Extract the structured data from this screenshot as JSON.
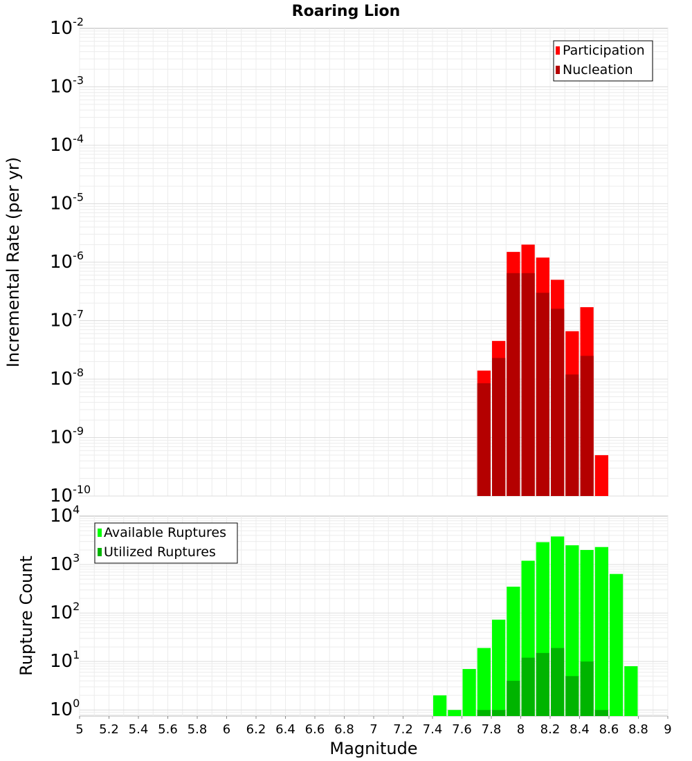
{
  "chart_data": [
    {
      "type": "bar",
      "title": "Roaring Lion",
      "ylabel": "Incremental Rate (per yr)",
      "xlabel": "",
      "yscale": "log",
      "ylim": [
        1e-10,
        0.01
      ],
      "y_ticks": [
        {
          "base": "10",
          "exp": "-2"
        },
        {
          "base": "10",
          "exp": "-3"
        },
        {
          "base": "10",
          "exp": "-4"
        },
        {
          "base": "10",
          "exp": "-5"
        },
        {
          "base": "10",
          "exp": "-6"
        },
        {
          "base": "10",
          "exp": "-7"
        },
        {
          "base": "10",
          "exp": "-8"
        },
        {
          "base": "10",
          "exp": "-9"
        },
        {
          "base": "10",
          "exp": "-10"
        }
      ],
      "xlim": [
        5,
        9
      ],
      "bin_width": 0.1,
      "legend": [
        {
          "label": "Participation",
          "color": "#ff0000"
        },
        {
          "label": "Nucleation",
          "color": "#b40000"
        }
      ],
      "legend_position": "top-right",
      "series": [
        {
          "name": "Participation",
          "color": "#ff0000",
          "x": [
            7.75,
            7.85,
            7.95,
            8.05,
            8.15,
            8.25,
            8.35,
            8.45,
            8.55
          ],
          "values": [
            1.4e-08,
            4.5e-08,
            1.5e-06,
            2e-06,
            1.2e-06,
            5e-07,
            6.6e-08,
            1.7e-07,
            5e-10
          ]
        },
        {
          "name": "Nucleation",
          "color": "#b40000",
          "x": [
            7.75,
            7.85,
            7.95,
            8.05,
            8.15,
            8.25,
            8.35,
            8.45
          ],
          "values": [
            8.5e-09,
            2.3e-08,
            6.5e-07,
            6.5e-07,
            3e-07,
            1.6e-07,
            1.2e-08,
            2.5e-08
          ]
        }
      ]
    },
    {
      "type": "bar",
      "ylabel": "Rupture Count",
      "xlabel": "Magnitude",
      "yscale": "log",
      "ylim": [
        0.75,
        10000
      ],
      "y_ticks": [
        {
          "base": "10",
          "exp": "4"
        },
        {
          "base": "10",
          "exp": "3"
        },
        {
          "base": "10",
          "exp": "2"
        },
        {
          "base": "10",
          "exp": "1"
        },
        {
          "base": "10",
          "exp": "0"
        }
      ],
      "xlim": [
        5,
        9
      ],
      "x_ticks": [
        "5",
        "5.2",
        "5.4",
        "5.6",
        "5.8",
        "6",
        "6.2",
        "6.4",
        "6.6",
        "6.8",
        "7",
        "7.2",
        "7.4",
        "7.6",
        "7.8",
        "8",
        "8.2",
        "8.4",
        "8.6",
        "8.8",
        "9"
      ],
      "bin_width": 0.1,
      "legend": [
        {
          "label": "Available Ruptures",
          "color": "#00ff00"
        },
        {
          "label": "Utilized Ruptures",
          "color": "#00b400"
        }
      ],
      "legend_position": "top-left",
      "series": [
        {
          "name": "Available Ruptures",
          "color": "#00ff00",
          "x": [
            7.45,
            7.55,
            7.65,
            7.75,
            7.85,
            7.95,
            8.05,
            8.15,
            8.25,
            8.35,
            8.45,
            8.55,
            8.65,
            8.75
          ],
          "values": [
            2,
            1,
            7,
            19,
            73,
            350,
            1200,
            2900,
            3800,
            2500,
            2000,
            2300,
            640,
            8
          ]
        },
        {
          "name": "Utilized Ruptures",
          "color": "#00b400",
          "x": [
            7.75,
            7.85,
            7.95,
            8.05,
            8.15,
            8.25,
            8.35,
            8.45,
            8.55
          ],
          "values": [
            1,
            1,
            4,
            12,
            15,
            19,
            5,
            10,
            1
          ]
        }
      ]
    }
  ]
}
